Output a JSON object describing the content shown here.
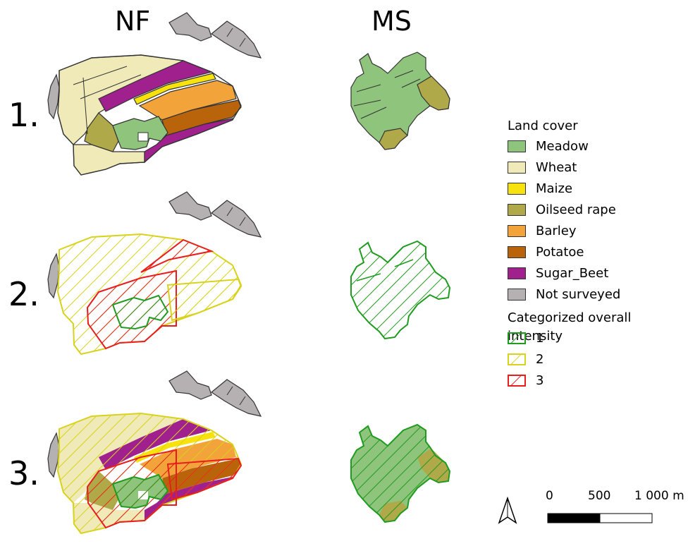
{
  "columns": {
    "left": "NF",
    "right": "MS"
  },
  "rows": [
    "1.",
    "2.",
    "3."
  ],
  "legend": {
    "land_cover_title": "Land cover",
    "land_cover": [
      {
        "label": "Meadow",
        "color": "#8ec47c"
      },
      {
        "label": "Wheat",
        "color": "#efeab7"
      },
      {
        "label": "Maize",
        "color": "#f7e20e"
      },
      {
        "label": "Oilseed rape",
        "color": "#b0a94a"
      },
      {
        "label": "Barley",
        "color": "#f2a33a"
      },
      {
        "label": "Potatoe",
        "color": "#b9640a"
      },
      {
        "label": "Sugar_Beet",
        "color": "#a0208e"
      },
      {
        "label": "Not surveyed",
        "color": "#b5b1b3"
      }
    ],
    "intensity_title": "Categorized overall intensity",
    "intensity": [
      {
        "label": "1",
        "color": "#1f9b1f"
      },
      {
        "label": "2",
        "color": "#d8d21c"
      },
      {
        "label": "3",
        "color": "#e81e1e"
      }
    ]
  },
  "scale_bar": {
    "labels": [
      "0",
      "500",
      "1 000 m"
    ]
  },
  "north_arrow": "north-arrow-icon"
}
